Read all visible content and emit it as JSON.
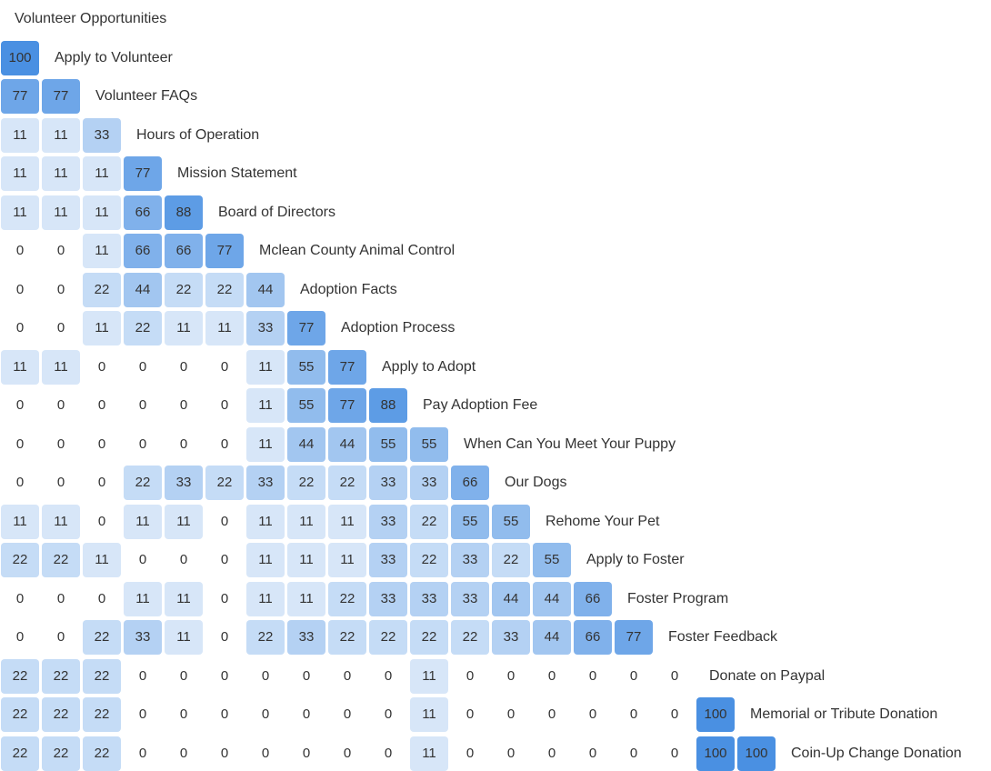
{
  "chart_data": {
    "type": "heatmap",
    "shape": "lower-triangular",
    "rows": [
      {
        "label": "Volunteer Opportunities",
        "values": []
      },
      {
        "label": "Apply to Volunteer",
        "values": [
          100
        ]
      },
      {
        "label": "Volunteer FAQs",
        "values": [
          77,
          77
        ]
      },
      {
        "label": "Hours of Operation",
        "values": [
          11,
          11,
          33
        ]
      },
      {
        "label": "Mission Statement",
        "values": [
          11,
          11,
          11,
          77
        ]
      },
      {
        "label": "Board of Directors",
        "values": [
          11,
          11,
          11,
          66,
          88
        ]
      },
      {
        "label": "Mclean County Animal Control",
        "values": [
          0,
          0,
          11,
          66,
          66,
          77
        ]
      },
      {
        "label": "Adoption Facts",
        "values": [
          0,
          0,
          22,
          44,
          22,
          22,
          44
        ]
      },
      {
        "label": "Adoption Process",
        "values": [
          0,
          0,
          11,
          22,
          11,
          11,
          33,
          77
        ]
      },
      {
        "label": "Apply to Adopt",
        "values": [
          11,
          11,
          0,
          0,
          0,
          0,
          11,
          55,
          77
        ]
      },
      {
        "label": "Pay Adoption Fee",
        "values": [
          0,
          0,
          0,
          0,
          0,
          0,
          11,
          55,
          77,
          88
        ]
      },
      {
        "label": "When Can You Meet Your Puppy",
        "values": [
          0,
          0,
          0,
          0,
          0,
          0,
          11,
          44,
          44,
          55,
          55
        ]
      },
      {
        "label": "Our Dogs",
        "values": [
          0,
          0,
          0,
          22,
          33,
          22,
          33,
          22,
          22,
          33,
          33,
          66
        ]
      },
      {
        "label": "Rehome Your Pet",
        "values": [
          11,
          11,
          0,
          11,
          11,
          0,
          11,
          11,
          11,
          33,
          22,
          55,
          55
        ]
      },
      {
        "label": "Apply to Foster",
        "values": [
          22,
          22,
          11,
          0,
          0,
          0,
          11,
          11,
          11,
          33,
          22,
          33,
          22,
          55
        ]
      },
      {
        "label": "Foster Program",
        "values": [
          0,
          0,
          0,
          11,
          11,
          0,
          11,
          11,
          22,
          33,
          33,
          33,
          44,
          44,
          66
        ]
      },
      {
        "label": "Foster Feedback",
        "values": [
          0,
          0,
          22,
          33,
          11,
          0,
          22,
          33,
          22,
          22,
          22,
          22,
          33,
          44,
          66,
          77
        ]
      },
      {
        "label": "Donate on Paypal",
        "values": [
          22,
          22,
          22,
          0,
          0,
          0,
          0,
          0,
          0,
          0,
          11,
          0,
          0,
          0,
          0,
          0,
          0
        ]
      },
      {
        "label": "Memorial or Tribute Donation",
        "values": [
          22,
          22,
          22,
          0,
          0,
          0,
          0,
          0,
          0,
          0,
          11,
          0,
          0,
          0,
          0,
          0,
          0,
          100
        ]
      },
      {
        "label": "Coin-Up Change Donation",
        "values": [
          22,
          22,
          22,
          0,
          0,
          0,
          0,
          0,
          0,
          0,
          11,
          0,
          0,
          0,
          0,
          0,
          0,
          100,
          100
        ]
      }
    ],
    "value_range": [
      0,
      100
    ],
    "colors": {
      "low": "#e8f1fb",
      "high": "#4a90e2",
      "zero": "#ffffff",
      "text": "#333333"
    }
  }
}
